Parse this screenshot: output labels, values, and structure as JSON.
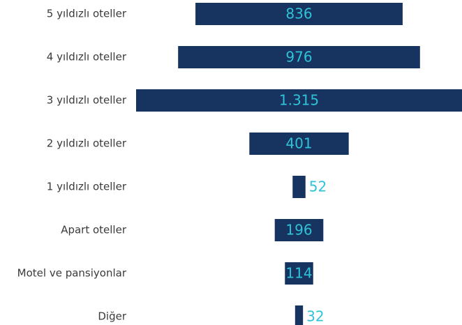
{
  "chart_data": {
    "type": "bar",
    "orientation": "horizontal",
    "align": "center",
    "categories": [
      "5 yıldızlı oteller",
      "4 yıldızlı oteller",
      "3 yıldızlı oteller",
      "2 yıldızlı oteller",
      "1 yıldızlı oteller",
      "Apart oteller",
      "Motel ve pansiyonlar",
      "Diğer"
    ],
    "values": [
      836,
      976,
      1315,
      401,
      52,
      196,
      114,
      32
    ],
    "value_labels": [
      "836",
      "976",
      "1.315",
      "401",
      "52",
      "196",
      "114",
      "32"
    ],
    "color": "#17335f",
    "label_color": "#2ec3d8"
  }
}
